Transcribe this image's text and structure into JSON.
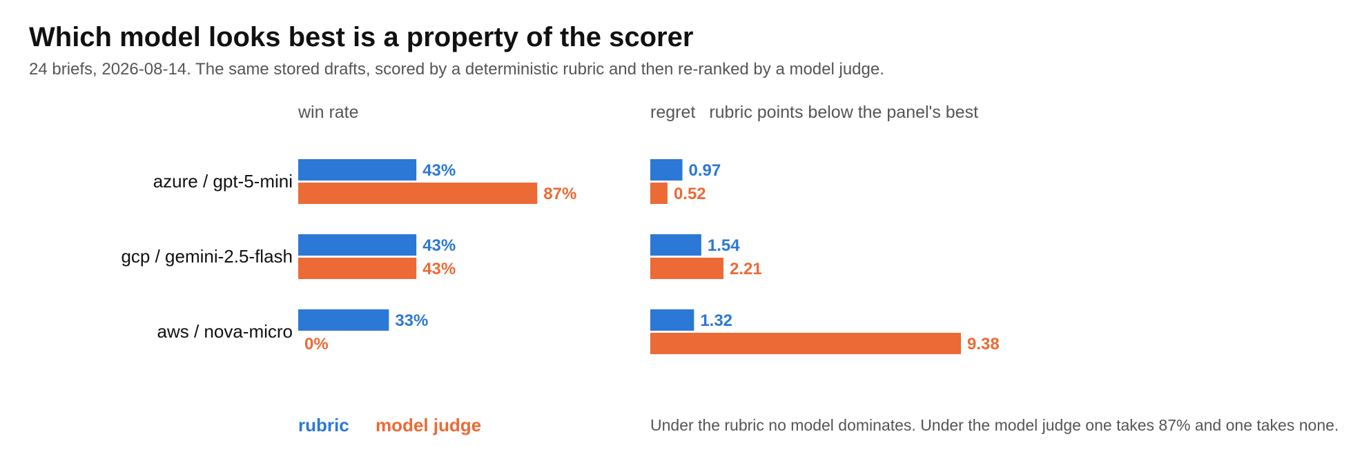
{
  "title": "Which model looks best is a property of the scorer",
  "subtitle": "24 briefs, 2026-08-14. The same stored drafts, scored by a deterministic rubric and then re-ranked by a model judge.",
  "colors": {
    "rubric": "#2B78D6",
    "model_judge": "#EC6A35"
  },
  "chart_data": [
    {
      "type": "bar",
      "orientation": "horizontal",
      "panel_label": "win rate",
      "categories": [
        "azure / gpt-5-mini",
        "gcp / gemini-2.5-flash",
        "aws / nova-micro"
      ],
      "unit": "%",
      "series": [
        {
          "name": "rubric",
          "values": [
            43,
            43,
            33
          ],
          "labels": [
            "43%",
            "43%",
            "33%"
          ]
        },
        {
          "name": "model judge",
          "values": [
            87,
            43,
            0
          ],
          "labels": [
            "87%",
            "43%",
            "0%"
          ]
        }
      ],
      "xlim": [
        0,
        100
      ]
    },
    {
      "type": "bar",
      "orientation": "horizontal",
      "panel_label": "regret",
      "panel_sublabel": "rubric points below the panel's best",
      "categories": [
        "azure / gpt-5-mini",
        "gcp / gemini-2.5-flash",
        "aws / nova-micro"
      ],
      "series": [
        {
          "name": "rubric",
          "values": [
            0.97,
            1.54,
            1.32
          ],
          "labels": [
            "0.97",
            "1.54",
            "1.32"
          ]
        },
        {
          "name": "model judge",
          "values": [
            0.52,
            2.21,
            9.38
          ],
          "labels": [
            "0.52",
            "2.21",
            "9.38"
          ]
        }
      ],
      "xlim": [
        0,
        9.38
      ]
    }
  ],
  "legend": {
    "rubric": "rubric",
    "model_judge": "model judge"
  },
  "note": "Under the rubric no model dominates. Under the model judge one takes 87% and one takes none."
}
